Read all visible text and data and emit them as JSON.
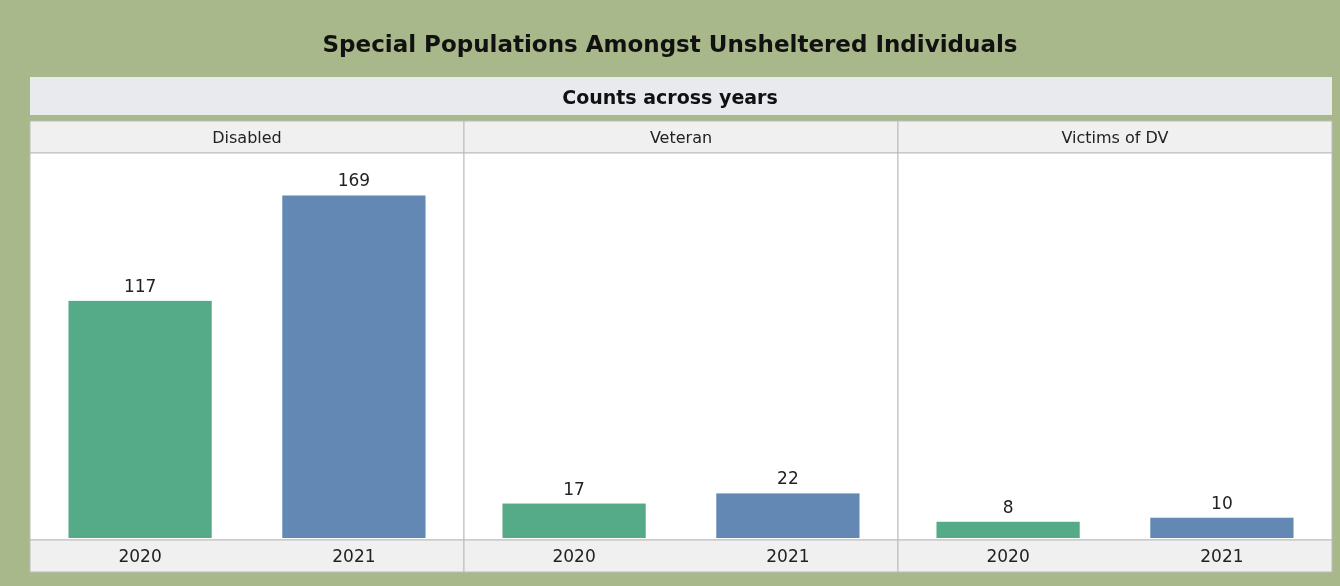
{
  "chart_data": [
    {
      "type": "bar",
      "title": "Disabled",
      "annotations": [
        "Special Populations Amongst Unsheltered Individuals",
        "Counts across years"
      ],
      "categories": [
        "2020",
        "2021"
      ],
      "values": [
        117,
        169
      ],
      "colors": [
        "#55ab87",
        "#6388b4"
      ],
      "data_labels": true
    },
    {
      "type": "bar",
      "title": "Veteran",
      "categories": [
        "2020",
        "2021"
      ],
      "values": [
        17,
        22
      ],
      "colors": [
        "#55ab87",
        "#6388b4"
      ],
      "data_labels": true
    },
    {
      "type": "bar",
      "title": "Victims of DV",
      "categories": [
        "2020",
        "2021"
      ],
      "values": [
        8,
        10
      ],
      "colors": [
        "#55ab87",
        "#6388b4"
      ],
      "data_labels": true
    }
  ]
}
